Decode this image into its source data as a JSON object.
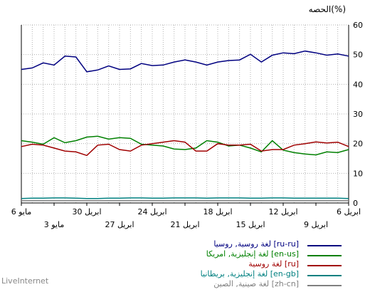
{
  "ylabel": "الحصه(%)",
  "brand": "LiveInternet",
  "chart_data": {
    "type": "line",
    "ylim": [
      0,
      60
    ],
    "yticks": [
      0,
      10,
      20,
      30,
      40,
      50,
      60
    ],
    "grid": true,
    "legend_position": "bottom",
    "x": [
      "6 ابريل",
      "7",
      "8",
      "9 ابريل",
      "10",
      "11",
      "12 ابريل",
      "13",
      "14",
      "15 ابريل",
      "16",
      "17",
      "18 ابريل",
      "19",
      "20",
      "21 ابريل",
      "22",
      "23",
      "24 ابريل",
      "25",
      "26",
      "27 ابريل",
      "28",
      "29",
      "30 ابريل",
      "1",
      "2",
      "3 مايو",
      "4",
      "5",
      "6 مايو"
    ],
    "xticks_top": [
      "6 ابريل",
      "12 ابريل",
      "18 ابريل",
      "24 ابريل",
      "30 ابريل",
      "6 مايو"
    ],
    "xticks_bottom": [
      "9 ابريل",
      "15 ابريل",
      "21 ابريل",
      "27 ابريل",
      "3 مايو"
    ],
    "series": [
      {
        "name": "لغة روسية, روسيا [ru-ru]",
        "color": "#000080",
        "values": [
          49.5,
          50.2,
          49.8,
          50.6,
          51.2,
          50.3,
          50.6,
          49.8,
          47.5,
          50.1,
          48.2,
          48.0,
          47.5,
          46.5,
          47.5,
          48.2,
          47.5,
          46.5,
          46.3,
          47.0,
          45.2,
          45.0,
          46.2,
          44.8,
          44.2,
          49.2,
          49.5,
          46.5,
          47.2,
          45.5,
          45.0
        ]
      },
      {
        "name": "لغة إنجليزية, امريكا [en-us]",
        "color": "#008000",
        "values": [
          18.0,
          17.0,
          17.2,
          16.2,
          16.5,
          17.0,
          17.8,
          21.0,
          17.2,
          18.5,
          19.5,
          19.2,
          20.5,
          21.0,
          18.5,
          18.0,
          18.2,
          19.2,
          19.5,
          19.8,
          21.8,
          22.0,
          21.5,
          22.5,
          22.2,
          21.0,
          20.3,
          22.0,
          19.8,
          20.5,
          21.0
        ]
      },
      {
        "name": "لغة روسية [ru]",
        "color": "#a00000",
        "values": [
          19.0,
          20.5,
          20.2,
          20.6,
          20.0,
          19.5,
          18.0,
          18.0,
          17.5,
          19.8,
          19.5,
          19.5,
          20.0,
          17.5,
          17.5,
          20.5,
          21.0,
          20.5,
          20.0,
          19.5,
          17.5,
          18.0,
          19.8,
          19.5,
          16.0,
          17.2,
          17.5,
          18.5,
          19.5,
          19.8,
          19.0
        ]
      },
      {
        "name": "لغة إنجليزية, بريطانيا [en-gb]",
        "color": "#008080",
        "values": [
          1.5,
          1.6,
          1.6,
          1.6,
          1.6,
          1.6,
          1.7,
          1.7,
          1.6,
          1.6,
          1.7,
          1.7,
          1.7,
          1.6,
          1.7,
          1.7,
          1.7,
          1.6,
          1.6,
          1.7,
          1.7,
          1.6,
          1.6,
          1.5,
          1.5,
          1.6,
          1.7,
          1.7,
          1.6,
          1.6,
          1.5
        ]
      },
      {
        "name": "لغة صينية, الصين [zh-cn]",
        "color": "#808080",
        "values": [
          0.8,
          0.8,
          0.8,
          0.8,
          0.8,
          0.8,
          0.8,
          0.8,
          0.8,
          0.8,
          0.8,
          0.8,
          0.8,
          0.8,
          0.8,
          0.8,
          0.8,
          0.8,
          0.8,
          0.8,
          0.8,
          0.8,
          0.8,
          0.8,
          0.8,
          0.8,
          0.8,
          0.8,
          0.8,
          0.8,
          0.8
        ]
      }
    ]
  }
}
